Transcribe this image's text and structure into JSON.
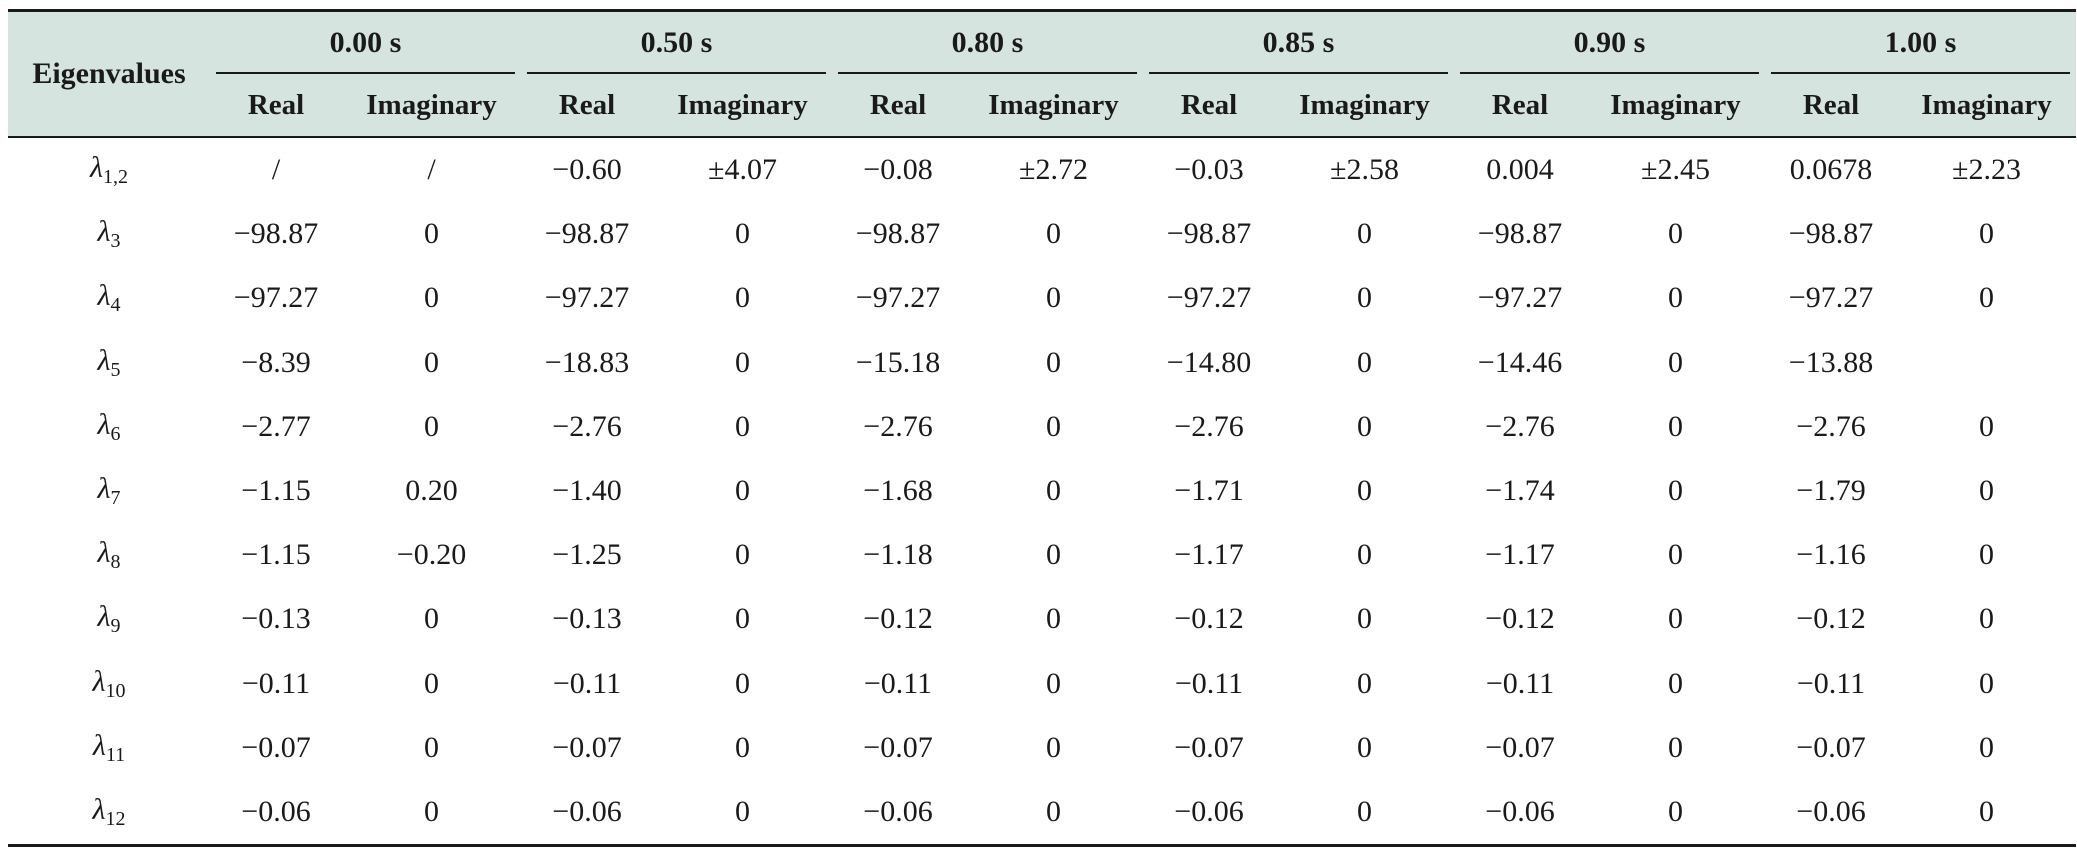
{
  "table": {
    "corner_header": "Eigenvalues",
    "time_groups": [
      "0.00 s",
      "0.50 s",
      "0.80 s",
      "0.85 s",
      "0.90 s",
      "1.00 s"
    ],
    "sub_headers": [
      "Real",
      "Imaginary"
    ],
    "rows": [
      {
        "sym": "λ",
        "sub": "1,2",
        "cells": [
          "/",
          "/",
          "−0.60",
          "±4.07",
          "−0.08",
          "±2.72",
          "−0.03",
          "±2.58",
          "0.004",
          "±2.45",
          "0.0678",
          "±2.23"
        ]
      },
      {
        "sym": "λ",
        "sub": "3",
        "cells": [
          "−98.87",
          "0",
          "−98.87",
          "0",
          "−98.87",
          "0",
          "−98.87",
          "0",
          "−98.87",
          "0",
          "−98.87",
          "0"
        ]
      },
      {
        "sym": "λ",
        "sub": "4",
        "cells": [
          "−97.27",
          "0",
          "−97.27",
          "0",
          "−97.27",
          "0",
          "−97.27",
          "0",
          "−97.27",
          "0",
          "−97.27",
          "0"
        ]
      },
      {
        "sym": "λ",
        "sub": "5",
        "cells": [
          "−8.39",
          "0",
          "−18.83",
          "0",
          "−15.18",
          "0",
          "−14.80",
          "0",
          "−14.46",
          "0",
          "−13.88",
          ""
        ]
      },
      {
        "sym": "λ",
        "sub": "6",
        "cells": [
          "−2.77",
          "0",
          "−2.76",
          "0",
          "−2.76",
          "0",
          "−2.76",
          "0",
          "−2.76",
          "0",
          "−2.76",
          "0"
        ]
      },
      {
        "sym": "λ",
        "sub": "7",
        "cells": [
          "−1.15",
          "0.20",
          "−1.40",
          "0",
          "−1.68",
          "0",
          "−1.71",
          "0",
          "−1.74",
          "0",
          "−1.79",
          "0"
        ]
      },
      {
        "sym": "λ",
        "sub": "8",
        "cells": [
          "−1.15",
          "−0.20",
          "−1.25",
          "0",
          "−1.18",
          "0",
          "−1.17",
          "0",
          "−1.17",
          "0",
          "−1.16",
          "0"
        ]
      },
      {
        "sym": "λ",
        "sub": "9",
        "cells": [
          "−0.13",
          "0",
          "−0.13",
          "0",
          "−0.12",
          "0",
          "−0.12",
          "0",
          "−0.12",
          "0",
          "−0.12",
          "0"
        ]
      },
      {
        "sym": "λ",
        "sub": "10",
        "cells": [
          "−0.11",
          "0",
          "−0.11",
          "0",
          "−0.11",
          "0",
          "−0.11",
          "0",
          "−0.11",
          "0",
          "−0.11",
          "0"
        ]
      },
      {
        "sym": "λ",
        "sub": "11",
        "cells": [
          "−0.07",
          "0",
          "−0.07",
          "0",
          "−0.07",
          "0",
          "−0.07",
          "0",
          "−0.07",
          "0",
          "−0.07",
          "0"
        ]
      },
      {
        "sym": "λ",
        "sub": "12",
        "cells": [
          "−0.06",
          "0",
          "−0.06",
          "0",
          "−0.06",
          "0",
          "−0.06",
          "0",
          "−0.06",
          "0",
          "−0.06",
          "0"
        ]
      }
    ]
  }
}
